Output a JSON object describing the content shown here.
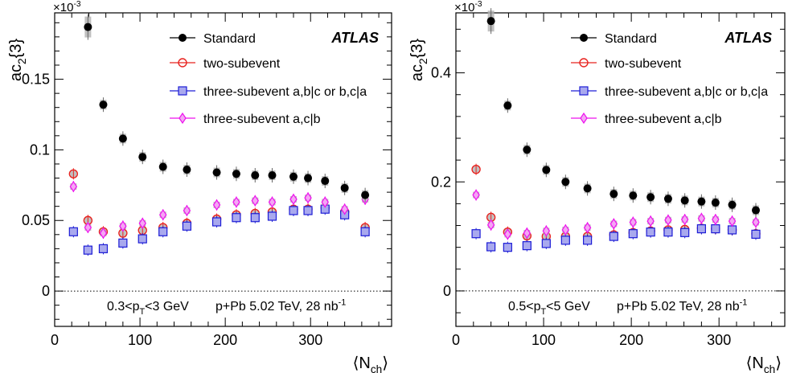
{
  "chart_data": [
    {
      "type": "scatter",
      "panel": "left",
      "ylabel": "ac",
      "ylabel_sub": "2",
      "ylabel_tail": "{3}",
      "xlabel": "⟨N",
      "xlabel_sub": "ch",
      "xlabel_tail": "⟩",
      "exponent_prefix": "×10",
      "exponent": "-3",
      "xlim": [
        0,
        395
      ],
      "ylim": [
        -0.025,
        0.197
      ],
      "xticks": [
        0,
        100,
        200,
        300
      ],
      "yticks": [
        0,
        0.05,
        0.1,
        0.15
      ],
      "ytick_labels": [
        "0",
        "0.05",
        "0.1",
        "0.15"
      ],
      "atlas_label": "ATLAS",
      "annotation_pt": "0.3<p",
      "annotation_pt_sub": "T",
      "annotation_pt_tail": "<3 GeV",
      "annotation_sys": "p+Pb 5.02 TeV, 28 nb",
      "annotation_sys_sup": "-1",
      "x": [
        22,
        39,
        57,
        80,
        103,
        127,
        155,
        190,
        213,
        235,
        255,
        280,
        297,
        317,
        340,
        364
      ],
      "series": [
        {
          "name": "Standard",
          "key": "standard",
          "x": [
            39,
            57,
            80,
            103,
            127,
            155,
            190,
            213,
            235,
            255,
            280,
            297,
            317,
            340,
            364
          ],
          "values": [
            0.187,
            0.132,
            0.108,
            0.095,
            0.088,
            0.086,
            0.084,
            0.083,
            0.082,
            0.082,
            0.081,
            0.08,
            0.078,
            0.073,
            0.068
          ]
        },
        {
          "name": "two-subevent",
          "key": "two",
          "x": [
            22,
            39,
            57,
            80,
            103,
            127,
            155,
            190,
            213,
            235,
            255,
            280,
            297,
            317,
            340,
            364
          ],
          "values": [
            0.083,
            0.05,
            0.042,
            0.041,
            0.043,
            0.045,
            0.048,
            0.051,
            0.054,
            0.055,
            0.056,
            0.058,
            0.058,
            0.059,
            0.056,
            0.045
          ]
        },
        {
          "name": "three-subevent a,b|c or b,c|a",
          "key": "three_abc",
          "x": [
            22,
            39,
            57,
            80,
            103,
            127,
            155,
            190,
            213,
            235,
            255,
            280,
            297,
            317,
            340,
            364
          ],
          "values": [
            0.042,
            0.029,
            0.03,
            0.034,
            0.037,
            0.042,
            0.046,
            0.049,
            0.052,
            0.052,
            0.053,
            0.057,
            0.057,
            0.058,
            0.054,
            0.042
          ]
        },
        {
          "name": "three-subevent a,c|b",
          "key": "three_acb",
          "x": [
            22,
            39,
            57,
            80,
            103,
            127,
            155,
            190,
            213,
            235,
            255,
            280,
            297,
            317,
            340,
            364
          ],
          "values": [
            0.074,
            0.045,
            0.041,
            0.046,
            0.048,
            0.054,
            0.057,
            0.061,
            0.063,
            0.064,
            0.063,
            0.065,
            0.066,
            0.063,
            0.058,
            0.065
          ]
        }
      ]
    },
    {
      "type": "scatter",
      "panel": "right",
      "ylabel": "ac",
      "ylabel_sub": "2",
      "ylabel_tail": "{3}",
      "xlabel": "⟨N",
      "xlabel_sub": "ch",
      "xlabel_tail": "⟩",
      "exponent_prefix": "×10",
      "exponent": "-3",
      "xlim": [
        0,
        375
      ],
      "ylim": [
        -0.065,
        0.51
      ],
      "xticks": [
        0,
        100,
        200,
        300
      ],
      "yticks": [
        0,
        0.2,
        0.4
      ],
      "ytick_labels": [
        "0",
        "0.2",
        "0.4"
      ],
      "atlas_label": "ATLAS",
      "annotation_pt": "0.5<p",
      "annotation_pt_sub": "T",
      "annotation_pt_tail": "<5 GeV",
      "annotation_sys": "p+Pb 5.02 TeV, 28 nb",
      "annotation_sys_sup": "-1",
      "series": [
        {
          "name": "Standard",
          "key": "standard",
          "x": [
            40,
            59,
            81,
            103,
            125,
            150,
            180,
            202,
            222,
            242,
            261,
            280,
            296,
            315,
            342
          ],
          "values": [
            0.495,
            0.34,
            0.259,
            0.222,
            0.2,
            0.188,
            0.178,
            0.175,
            0.172,
            0.169,
            0.166,
            0.164,
            0.162,
            0.158,
            0.148
          ]
        },
        {
          "name": "two-subevent",
          "key": "two",
          "x": [
            23,
            40,
            59,
            81,
            103,
            125,
            150,
            180,
            202,
            222,
            242,
            261,
            280,
            296,
            315,
            342
          ],
          "values": [
            0.223,
            0.135,
            0.108,
            0.101,
            0.1,
            0.1,
            0.1,
            0.103,
            0.107,
            0.11,
            0.112,
            0.113,
            0.115,
            0.114,
            0.112,
            0.105
          ]
        },
        {
          "name": "three-subevent a,b|c or b,c|a",
          "key": "three_abc",
          "x": [
            23,
            40,
            59,
            81,
            103,
            125,
            150,
            180,
            202,
            222,
            242,
            261,
            280,
            296,
            315,
            342
          ],
          "values": [
            0.105,
            0.081,
            0.08,
            0.083,
            0.087,
            0.093,
            0.093,
            0.1,
            0.105,
            0.108,
            0.108,
            0.107,
            0.114,
            0.114,
            0.112,
            0.104
          ]
        },
        {
          "name": "three-subevent a,c|b",
          "key": "three_acb",
          "x": [
            23,
            40,
            59,
            81,
            103,
            125,
            150,
            180,
            202,
            222,
            242,
            261,
            280,
            296,
            315,
            342
          ],
          "values": [
            0.176,
            0.121,
            0.104,
            0.106,
            0.11,
            0.112,
            0.116,
            0.123,
            0.126,
            0.128,
            0.13,
            0.131,
            0.133,
            0.131,
            0.128,
            0.126
          ]
        }
      ]
    }
  ],
  "colors": {
    "standard": "#000000",
    "two": "#e8231f",
    "three_abc": "#1d1dd6",
    "three_acb": "#ee11ee",
    "three_abc_fill": "#a9a9ee",
    "three_acb_fill": "#f4a6f4",
    "syst_band": "#b0b0b0"
  },
  "markers": {
    "standard": "filled-circle",
    "two": "open-circle",
    "three_abc": "open-square",
    "three_acb": "open-diamond"
  }
}
